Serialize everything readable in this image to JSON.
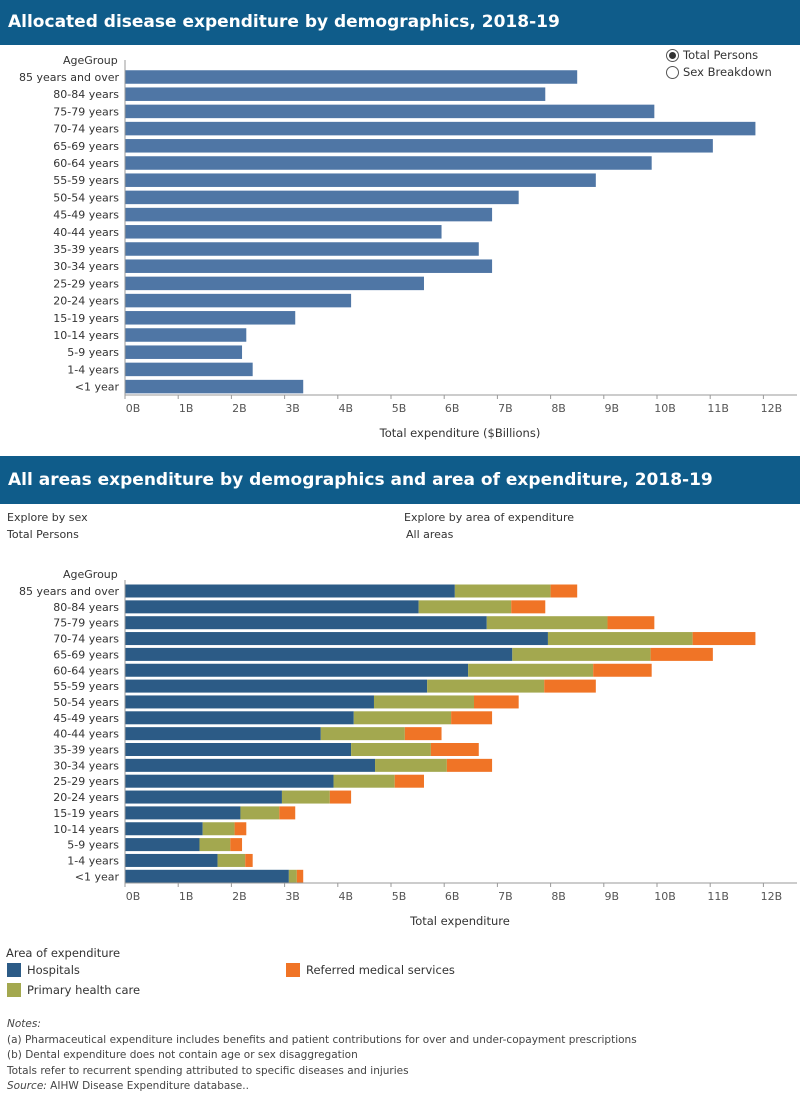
{
  "top_section": {
    "title": "Allocated disease expenditure by demographics, 2018-19",
    "row_header": "AgeGroup",
    "x_axis_title": "Total expenditure ($Billions)",
    "radio_options": [
      {
        "label": "Total Persons",
        "selected": true
      },
      {
        "label": "Sex Breakdown",
        "selected": false
      }
    ]
  },
  "bottom_section": {
    "title": "All areas expenditure by demographics and area of expenditure, 2018-19",
    "filter_sex_label": "Explore by sex",
    "filter_sex_value": "Total Persons",
    "filter_area_label": "Explore by area of expenditure",
    "filter_area_value": "All areas",
    "row_header": "AgeGroup",
    "x_axis_title": "Total expenditure",
    "legend_title": "Area of expenditure",
    "legend": [
      {
        "label": "Hospitals",
        "color": "#2c5b86"
      },
      {
        "label": "Primary health care",
        "color": "#a3a84f"
      },
      {
        "label": "Referred medical services",
        "color": "#f07426"
      }
    ]
  },
  "notes": {
    "label": "Notes:",
    "lines": [
      "(a) Pharmaceutical expenditure includes benefits and patient contributions for over and under-copayment prescriptions",
      "(b) Dental expenditure does not contain age or sex disaggregation",
      "Totals refer to recurrent spending attributed to specific diseases and injuries"
    ],
    "source_label": "Source:",
    "source_text": " AIHW Disease Expenditure database.."
  },
  "chart_data": [
    {
      "type": "bar",
      "orientation": "horizontal",
      "title": "Allocated disease expenditure by demographics, 2018-19",
      "xlabel": "Total expenditure ($Billions)",
      "ylabel": "AgeGroup",
      "categories": [
        "85 years and over",
        "80-84 years",
        "75-79 years",
        "70-74 years",
        "65-69 years",
        "60-64 years",
        "55-59 years",
        "50-54 years",
        "45-49 years",
        "40-44 years",
        "35-39 years",
        "30-34 years",
        "25-29 years",
        "20-24 years",
        "15-19 years",
        "10-14 years",
        "5-9 years",
        "1-4 years",
        "<1 year"
      ],
      "values": [
        8.5,
        7.9,
        9.95,
        11.85,
        11.05,
        9.9,
        8.85,
        7.4,
        6.9,
        5.95,
        6.65,
        6.9,
        5.62,
        4.25,
        3.2,
        2.28,
        2.2,
        2.4,
        3.35
      ],
      "xlim": [
        0,
        12.5
      ],
      "ticks": [
        "0B",
        "1B",
        "2B",
        "3B",
        "4B",
        "5B",
        "6B",
        "7B",
        "8B",
        "9B",
        "10B",
        "11B",
        "12B"
      ],
      "colors": [
        "#4f76a5"
      ],
      "grid": false
    },
    {
      "type": "bar",
      "orientation": "horizontal",
      "stacked": true,
      "title": "All areas expenditure by demographics and area of expenditure, 2018-19",
      "xlabel": "Total expenditure",
      "ylabel": "AgeGroup",
      "categories": [
        "85 years and over",
        "80-84 years",
        "75-79 years",
        "70-74 years",
        "65-69 years",
        "60-64 years",
        "55-59 years",
        "50-54 years",
        "45-49 years",
        "40-44 years",
        "35-39 years",
        "30-34 years",
        "25-29 years",
        "20-24 years",
        "15-19 years",
        "10-14 years",
        "5-9 years",
        "1-4 years",
        "<1 year"
      ],
      "series": [
        {
          "name": "Hospitals",
          "color": "#2c5b86",
          "values": [
            6.2,
            5.52,
            6.8,
            7.95,
            7.28,
            6.45,
            5.68,
            4.68,
            4.3,
            3.68,
            4.25,
            4.7,
            3.92,
            2.95,
            2.17,
            1.46,
            1.4,
            1.74,
            3.08
          ]
        },
        {
          "name": "Primary health care",
          "color": "#a3a84f",
          "values": [
            1.8,
            1.74,
            2.27,
            2.72,
            2.6,
            2.35,
            2.2,
            1.88,
            1.83,
            1.58,
            1.5,
            1.35,
            1.15,
            0.9,
            0.73,
            0.6,
            0.58,
            0.52,
            0.15
          ]
        },
        {
          "name": "Referred medical services",
          "color": "#f07426",
          "values": [
            0.5,
            0.64,
            0.88,
            1.18,
            1.17,
            1.1,
            0.97,
            0.84,
            0.77,
            0.69,
            0.9,
            0.85,
            0.55,
            0.4,
            0.3,
            0.22,
            0.22,
            0.14,
            0.12
          ]
        }
      ],
      "xlim": [
        0,
        12.5
      ],
      "ticks": [
        "0B",
        "1B",
        "2B",
        "3B",
        "4B",
        "5B",
        "6B",
        "7B",
        "8B",
        "9B",
        "10B",
        "11B",
        "12B"
      ],
      "grid": false,
      "legend_position": "bottom-left"
    }
  ]
}
